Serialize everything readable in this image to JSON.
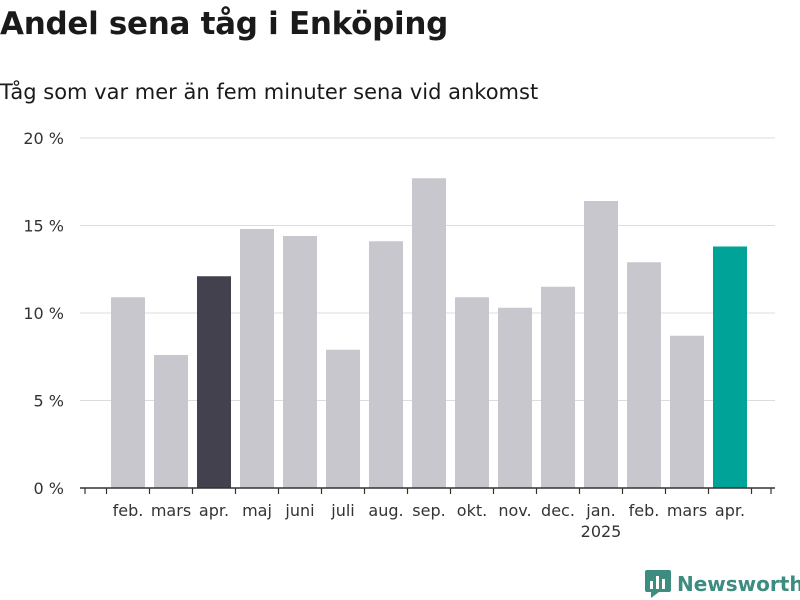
{
  "brand": {
    "name": "Newsworthy",
    "icon": "bar-chart-logo-icon",
    "color": "#3d8c80"
  },
  "chart_data": {
    "type": "bar",
    "title": "Andel sena tåg i Enköping",
    "subtitle": "Tåg som var mer än fem minuter sena vid ankomst",
    "categories": [
      "feb.",
      "mars",
      "apr.",
      "maj",
      "juni",
      "juli",
      "aug.",
      "sep.",
      "okt.",
      "nov.",
      "dec.",
      "jan.",
      "feb.",
      "mars",
      "apr."
    ],
    "year_marker": {
      "index": 11,
      "label": "2025"
    },
    "values": [
      10.9,
      7.6,
      12.1,
      14.8,
      14.4,
      7.9,
      14.1,
      17.7,
      10.9,
      10.3,
      11.5,
      16.4,
      12.9,
      8.7,
      13.8
    ],
    "highlight": {
      "2": "#42414d",
      "14": "#00a398"
    },
    "default_color": "#c8c7cd",
    "ylim": [
      0,
      20
    ],
    "yticks": [
      0,
      5,
      10,
      15,
      20
    ],
    "ytick_labels": [
      "0 %",
      "5 %",
      "10 %",
      "15 %",
      "20 %"
    ],
    "grid": true,
    "xlabel": "",
    "ylabel": ""
  }
}
